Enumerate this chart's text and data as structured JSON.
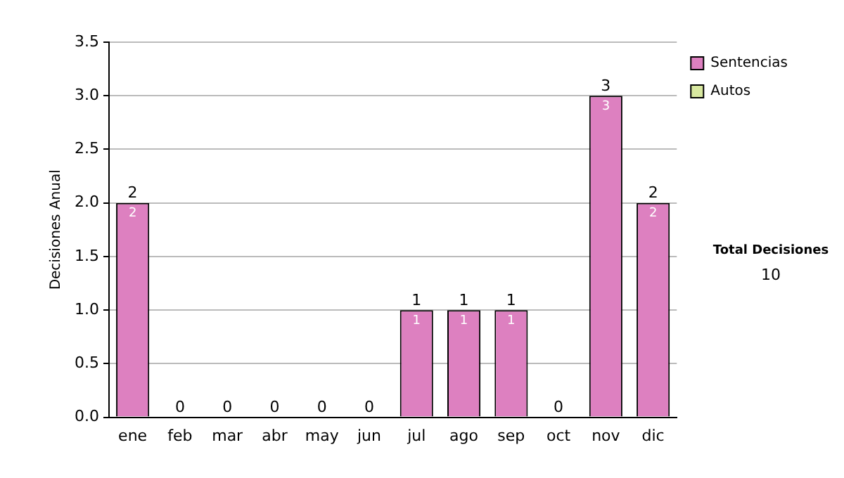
{
  "chart_data": {
    "type": "bar",
    "ylabel": "Decisiones Anual",
    "categories": [
      "ene",
      "feb",
      "mar",
      "abr",
      "may",
      "jun",
      "jul",
      "ago",
      "sep",
      "oct",
      "nov",
      "dic"
    ],
    "series": [
      {
        "name": "Sentencias",
        "color": "#dd80c0",
        "values": [
          2,
          0,
          0,
          0,
          0,
          0,
          1,
          1,
          1,
          0,
          3,
          2
        ],
        "value_labels": [
          "2",
          null,
          null,
          null,
          null,
          null,
          "1",
          "1",
          "1",
          null,
          "3",
          "2"
        ]
      },
      {
        "name": "Autos",
        "color": "#d8e8a0",
        "values": [
          0,
          0,
          0,
          0,
          0,
          0,
          0,
          0,
          0,
          0,
          0,
          0
        ]
      }
    ],
    "stacked": true,
    "totals": [
      "2",
      "0",
      "0",
      "0",
      "0",
      "0",
      "1",
      "1",
      "1",
      "0",
      "3",
      "2"
    ],
    "ylim": [
      0,
      3.5
    ],
    "yticks": [
      {
        "value": 0,
        "label": "0.0"
      },
      {
        "value": 0.5,
        "label": "0.5"
      },
      {
        "value": 1,
        "label": "1.0"
      },
      {
        "value": 1.5,
        "label": "1.5"
      },
      {
        "value": 2,
        "label": "2.0"
      },
      {
        "value": 2.5,
        "label": "2.5"
      },
      {
        "value": 3,
        "label": "3.0"
      },
      {
        "value": 3.5,
        "label": "3.5"
      }
    ],
    "grid": "y",
    "legend": "right",
    "annotations": [
      "Total Decisiones",
      "10"
    ]
  }
}
